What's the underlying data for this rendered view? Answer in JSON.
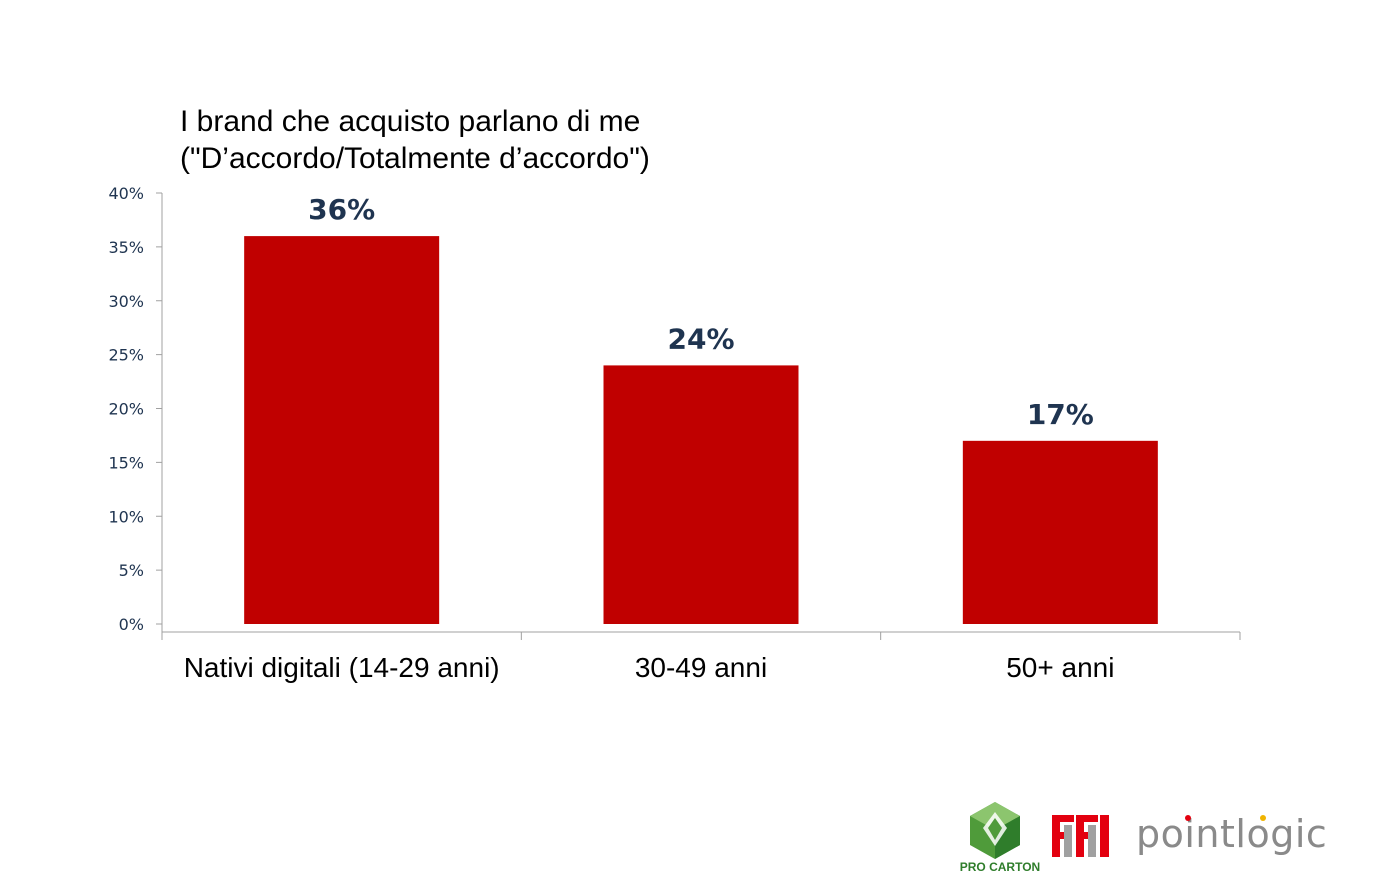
{
  "chart_data": {
    "type": "bar",
    "title_lines": [
      "I brand che acquisto parlano di me",
      "(\"D’accordo/Totalmente d’accordo\")"
    ],
    "categories": [
      "Nativi digitali (14-29 anni)",
      "30-49 anni",
      "50+ anni"
    ],
    "values": [
      36,
      24,
      17
    ],
    "data_labels": [
      "36%",
      "24%",
      "17%"
    ],
    "ylim": [
      0,
      40
    ],
    "yticks": [
      0,
      5,
      10,
      15,
      20,
      25,
      30,
      35,
      40
    ],
    "ytick_labels": [
      "0%",
      "5%",
      "10%",
      "15%",
      "20%",
      "25%",
      "30%",
      "35%",
      "40%"
    ],
    "grid": false,
    "colors": {
      "bar": "#c00000",
      "data_label": "#1f3450",
      "axis": "#a0a0a0",
      "tick_label": "#1f3450"
    }
  },
  "logos": {
    "procarton": "PRO CARTON",
    "fi": "FI",
    "pointlogic": "pointlogic"
  }
}
